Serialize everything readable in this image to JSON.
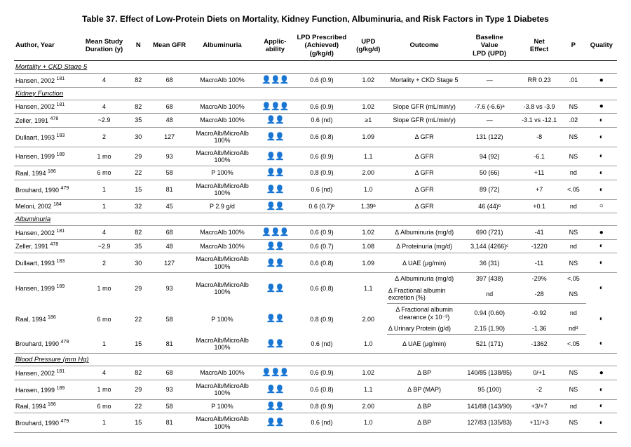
{
  "title": "Table 37.   Effect of Low-Protein Diets on Mortality, Kidney Function, Albuminuria, and Risk Factors in Type 1 Diabetes",
  "columns": [
    "Author, Year",
    "Mean Study Duration (y)",
    "N",
    "Mean GFR",
    "Albuminuria",
    "Applic-ability",
    "LPD Prescribed (Achieved) (g/kg/d)",
    "UPD (g/kg/d)",
    "Outcome",
    "Baseline Value LPD (UPD)",
    "Net Effect",
    "P",
    "Quality"
  ],
  "col_widths": [
    "11%",
    "7%",
    "4%",
    "6%",
    "11%",
    "6%",
    "9%",
    "6%",
    "12%",
    "9%",
    "7%",
    "4%",
    "5%"
  ],
  "glyphs": {
    "p3": "👤👤👤",
    "p2": "👤👤",
    "qs": "●",
    "qo": "◐",
    "qe": "○"
  },
  "sections": [
    {
      "header": "Mortality + CKD Stage 5",
      "rows": [
        {
          "cells": [
            "Hansen, 2002 ",
            "4",
            "82",
            "68",
            "MacroAlb 100%",
            "p3",
            "0.6 (0.9)",
            "1.02",
            "Mortality + CKD Stage 5",
            "—",
            "RR 0.23",
            ".01",
            "qs"
          ],
          "ref": "181"
        }
      ]
    },
    {
      "header": "Kidney Function",
      "rows": [
        {
          "cells": [
            "Hansen, 2002 ",
            "4",
            "82",
            "68",
            "MacroAlb 100%",
            "p3",
            "0.6 (0.9)",
            "1.02",
            "Slope GFR (mL/min/y)",
            "-7.6 (-6.6)ᵃ",
            "-3.8 vs -3.9",
            "NS",
            "qs"
          ],
          "ref": "181"
        },
        {
          "cells": [
            "Zeller, 1991 ",
            "~2.9",
            "35",
            "48",
            "MacroAlb 100%",
            "p2",
            "0.6 (nd)",
            "≥1",
            "Slope GFR (mL/min/y)",
            "—",
            "-3.1 vs -12.1",
            ".02",
            "qo"
          ],
          "ref": "478"
        },
        {
          "cells": [
            "Dullaart, 1993 ",
            "2",
            "30",
            "127",
            "MacroAlb/MicroAlb 100%",
            "p2",
            "0.6 (0.8)",
            "1.09",
            "Δ GFR",
            "131 (122)",
            "-8",
            "NS",
            "qo"
          ],
          "ref": "183"
        },
        {
          "cells": [
            "Hansen, 1999 ",
            "1 mo",
            "29",
            "93",
            "MacroAlb/MicroAlb 100%",
            "p2",
            "0.6 (0.9)",
            "1.1",
            "Δ GFR",
            "94 (92)",
            "-6.1",
            "NS",
            "qo"
          ],
          "ref": "189"
        },
        {
          "cells": [
            "Raal, 1994 ",
            "6 mo",
            "22",
            "58",
            "P 100%",
            "p2",
            "0.8 (0.9)",
            "2.00",
            "Δ GFR",
            "50 (66)",
            "+11",
            "nd",
            "qo"
          ],
          "ref": "186"
        },
        {
          "cells": [
            "Brouhard, 1990 ",
            "1",
            "15",
            "81",
            "MacroAlb/MicroAlb 100%",
            "p2",
            "0.6 (nd)",
            "1.0",
            "Δ GFR",
            "89 (72)",
            "+7",
            "<.05",
            "qo"
          ],
          "ref": "479"
        },
        {
          "cells": [
            "Meloni, 2002 ",
            "1",
            "32",
            "45",
            "P 2.9 g/d",
            "p2",
            "0.6 (0.7)ᵇ",
            "1.39ᵇ",
            "Δ GFR",
            "46 (44)ᵇ",
            "+0.1",
            "nd",
            "qe"
          ],
          "ref": "184"
        }
      ]
    },
    {
      "header": "Albuminuria",
      "rows": [
        {
          "cells": [
            "Hansen, 2002 ",
            "4",
            "82",
            "68",
            "MacroAlb 100%",
            "p3",
            "0.6 (0.9)",
            "1.02",
            "Δ Albuminuria (mg/d)",
            "690 (721)",
            "-41",
            "NS",
            "qs"
          ],
          "ref": "181"
        },
        {
          "cells": [
            "Zeller, 1991 ",
            "~2.9",
            "35",
            "48",
            "MacroAlb 100%",
            "p2",
            "0.6 (0.7)",
            "1.08",
            "Δ Proteinuria (mg/d)",
            "3,144 (4266)ᶜ",
            "-1220",
            "nd",
            "qo"
          ],
          "ref": "478"
        },
        {
          "cells": [
            "Dullaart, 1993 ",
            "2",
            "30",
            "127",
            "MacroAlb/MicroAlb 100%",
            "p2",
            "0.6 (0.8)",
            "1.09",
            "Δ UAE (μg/min)",
            "36 (31)",
            "-11",
            "NS",
            "qo"
          ],
          "ref": "183"
        },
        {
          "span2": true,
          "ref": "189",
          "top": [
            "Hansen, 1999 ",
            "1 mo",
            "29",
            "93",
            "MacroAlb/MicroAlb 100%",
            "p2",
            "0.6 (0.8)",
            "1.1",
            "Δ Albuminuria (mg/d)",
            "397 (438)",
            "-29%",
            "<.05",
            "qo"
          ],
          "bot": [
            "Δ Fractional albumin excretion (%)",
            "nd",
            "-28",
            "NS"
          ]
        },
        {
          "span2": true,
          "ref": "186",
          "top": [
            "Raal, 1994 ",
            "6 mo",
            "22",
            "58",
            "P 100%",
            "p2",
            "0.8 (0.9)",
            "2.00",
            "Δ Fractional albumin clearance (x 10⁻³)",
            "0.94 (0.60)",
            "-0.92",
            "nd",
            "qo"
          ],
          "bot": [
            "Δ Urinary Protein (g/d)",
            "2.15 (1.90)",
            "-1.36",
            "ndᵈ"
          ]
        },
        {
          "cells": [
            "Brouhard, 1990 ",
            "1",
            "15",
            "81",
            "MacroAlb/MicroAlb 100%",
            "p2",
            "0.6 (nd)",
            "1.0",
            "Δ UAE (μg/min)",
            "521 (171)",
            "-1362",
            "<.05",
            "qo"
          ],
          "ref": "479"
        }
      ]
    },
    {
      "header": "Blood Pressure (mm Hg)",
      "rows": [
        {
          "cells": [
            "Hansen, 2002 ",
            "4",
            "82",
            "68",
            "MacroAlb 100%",
            "p3",
            "0.6 (0.9)",
            "1.02",
            "Δ BP",
            "140/85 (138/85)",
            "0/+1",
            "NS",
            "qs"
          ],
          "ref": "181"
        },
        {
          "cells": [
            "Hansen, 1999 ",
            "1 mo",
            "29",
            "93",
            "MacroAlb/MicroAlb 100%",
            "p2",
            "0.6 (0.8)",
            "1.1",
            "Δ BP (MAP)",
            "95 (100)",
            "-2",
            "NS",
            "qo"
          ],
          "ref": "189"
        },
        {
          "cells": [
            "Raal, 1994 ",
            "6 mo",
            "22",
            "58",
            "P 100%",
            "p2",
            "0.8 (0.9)",
            "2.00",
            "Δ BP",
            "141/88 (143/90)",
            "+3/+7",
            "nd",
            "qo"
          ],
          "ref": "186"
        },
        {
          "cells": [
            "Brouhard, 1990 ",
            "1",
            "15",
            "81",
            "MacroAlb/MicroAlb 100%",
            "p2",
            "0.6 (nd)",
            "1.0",
            "Δ BP",
            "127/83 (135/83)",
            "+11/+3",
            "NS",
            "qo"
          ],
          "ref": "479"
        }
      ]
    }
  ]
}
